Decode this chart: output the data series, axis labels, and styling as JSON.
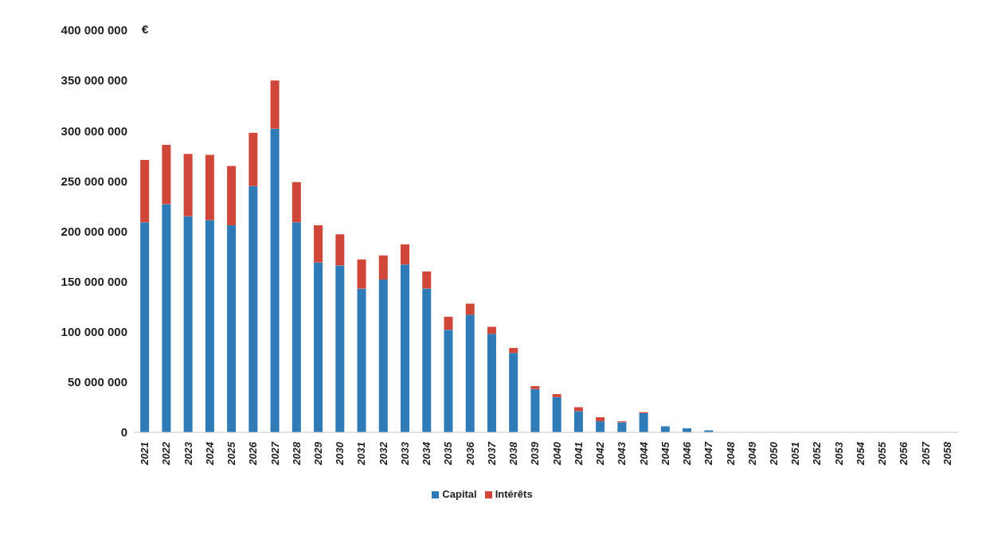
{
  "chart_data": {
    "type": "bar",
    "ylabel": "€",
    "stacked": true,
    "legend": "bottom",
    "grid": false,
    "categories": [
      "2021",
      "2022",
      "2023",
      "2024",
      "2025",
      "2026",
      "2027",
      "2028",
      "2029",
      "2030",
      "2031",
      "2032",
      "2033",
      "2034",
      "2035",
      "2036",
      "2037",
      "2038",
      "2039",
      "2040",
      "2041",
      "2042",
      "2043",
      "2044",
      "2045",
      "2046",
      "2047",
      "2048",
      "2049",
      "2050",
      "2051",
      "2052",
      "2053",
      "2054",
      "2055",
      "2056",
      "2057",
      "2058"
    ],
    "series": [
      {
        "name": "Capital",
        "color": "#2e7bb8",
        "values": [
          209000000,
          227000000,
          215000000,
          211000000,
          206000000,
          245000000,
          302000000,
          209000000,
          169000000,
          166000000,
          143000000,
          152000000,
          167000000,
          143000000,
          102000000,
          117000000,
          98000000,
          79000000,
          43000000,
          35000000,
          21000000,
          11000000,
          10000000,
          19000000,
          6000000,
          4000000,
          2000000,
          0,
          0,
          0,
          0,
          0,
          0,
          0,
          0,
          0,
          0,
          0
        ]
      },
      {
        "name": "Intérêts",
        "color": "#d0473a",
        "values": [
          62000000,
          59000000,
          62000000,
          65000000,
          59000000,
          53000000,
          48000000,
          40000000,
          37000000,
          31000000,
          29000000,
          24000000,
          20000000,
          17000000,
          13000000,
          11000000,
          7000000,
          5000000,
          3000000,
          3000000,
          4000000,
          4000000,
          1000000,
          1000000,
          0,
          0,
          0,
          0,
          0,
          0,
          0,
          0,
          0,
          0,
          0,
          0,
          0,
          0
        ]
      }
    ],
    "ylim": [
      0,
      400000000
    ],
    "yticks": [
      0,
      {
        "value": 50000000,
        "label": "50 000 000"
      },
      {
        "value": 100000000,
        "label": "100 000 000"
      },
      {
        "value": 150000000,
        "label": "150 000 000"
      },
      {
        "value": 200000000,
        "label": "200 000 000"
      },
      {
        "value": 250000000,
        "label": "250 000 000"
      },
      {
        "value": 300000000,
        "label": "300 000 000"
      },
      {
        "value": 350000000,
        "label": "350 000 000"
      },
      {
        "value": 400000000,
        "label": "400 000 000"
      }
    ]
  }
}
